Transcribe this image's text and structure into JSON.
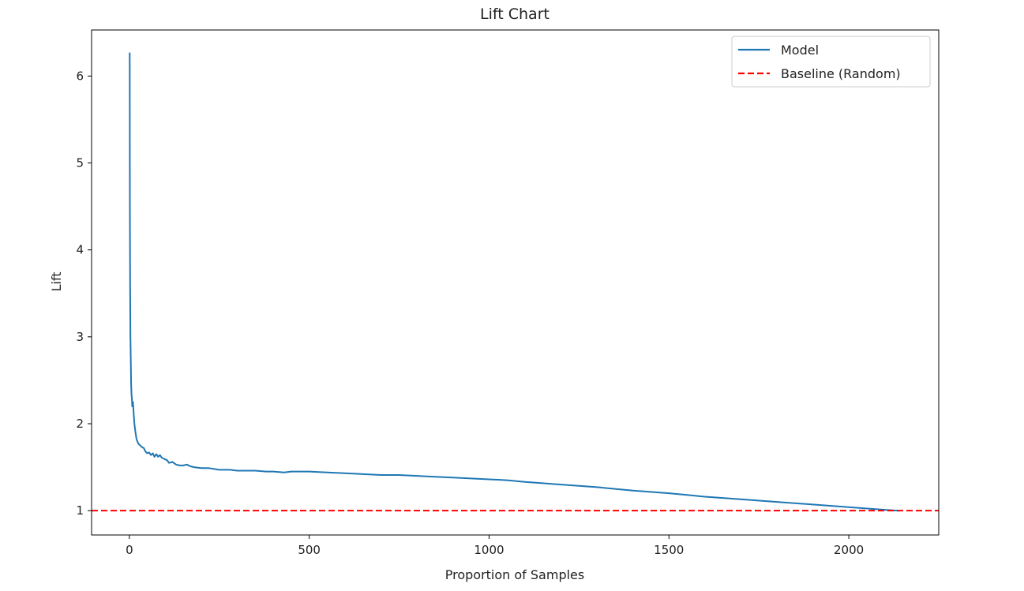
{
  "chart_data": {
    "type": "line",
    "title": "Lift Chart",
    "xlabel": "Proportion of Samples",
    "ylabel": "Lift",
    "xlim": [
      -105,
      2250
    ],
    "ylim": [
      0.72,
      6.53
    ],
    "xticks": [
      0,
      500,
      1000,
      1500,
      2000
    ],
    "yticks": [
      1,
      2,
      3,
      4,
      5,
      6
    ],
    "grid": false,
    "legend_position": "top-right",
    "series": [
      {
        "name": "Model",
        "color": "#1f77b4",
        "style": "solid",
        "x": [
          1,
          1.5,
          2,
          3,
          4,
          5,
          6,
          7,
          8,
          10,
          12,
          14,
          17,
          20,
          25,
          30,
          35,
          40,
          45,
          50,
          55,
          60,
          65,
          70,
          75,
          80,
          85,
          90,
          95,
          100,
          105,
          110,
          120,
          130,
          140,
          150,
          160,
          170,
          180,
          200,
          220,
          250,
          280,
          300,
          330,
          350,
          380,
          400,
          430,
          450,
          480,
          500,
          550,
          600,
          650,
          700,
          750,
          800,
          850,
          900,
          950,
          1000,
          1050,
          1100,
          1200,
          1300,
          1400,
          1500,
          1550,
          1600,
          1700,
          1800,
          1900,
          2000,
          2100,
          2140
        ],
        "y": [
          6.27,
          4.5,
          3.6,
          3.0,
          2.7,
          2.45,
          2.33,
          2.3,
          2.2,
          2.25,
          2.12,
          2.0,
          1.9,
          1.82,
          1.77,
          1.75,
          1.73,
          1.72,
          1.68,
          1.66,
          1.67,
          1.64,
          1.66,
          1.62,
          1.65,
          1.62,
          1.64,
          1.61,
          1.6,
          1.59,
          1.58,
          1.55,
          1.56,
          1.53,
          1.52,
          1.52,
          1.53,
          1.51,
          1.5,
          1.49,
          1.49,
          1.47,
          1.47,
          1.46,
          1.46,
          1.46,
          1.45,
          1.45,
          1.44,
          1.45,
          1.45,
          1.45,
          1.44,
          1.43,
          1.42,
          1.41,
          1.41,
          1.4,
          1.39,
          1.38,
          1.37,
          1.36,
          1.35,
          1.33,
          1.3,
          1.27,
          1.23,
          1.2,
          1.18,
          1.16,
          1.13,
          1.1,
          1.07,
          1.04,
          1.01,
          1.0
        ]
      },
      {
        "name": "Baseline (Random)",
        "color": "#ff0000",
        "style": "dashed",
        "y_constant": 1
      }
    ]
  }
}
